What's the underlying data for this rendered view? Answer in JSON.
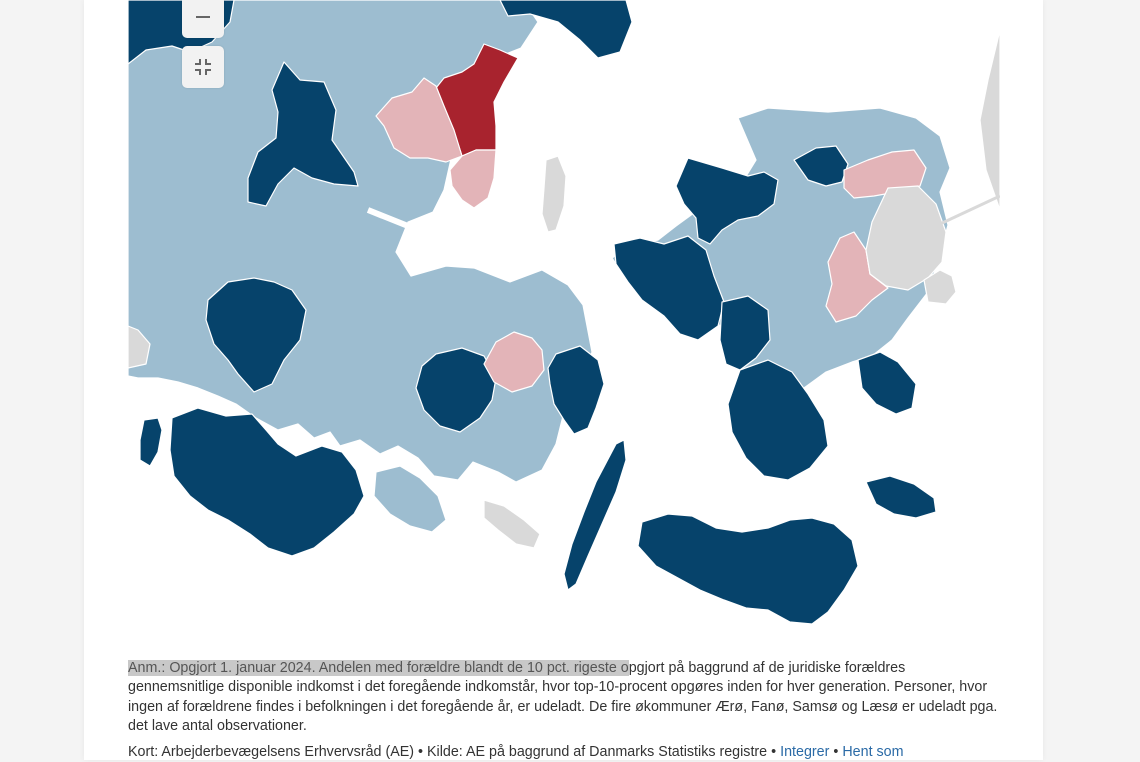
{
  "colors": {
    "dark_blue": "#06436b",
    "light_blue": "#9dbdd0",
    "light_pink": "#e3b4b8",
    "dark_red": "#a8232e",
    "no_data_grey": "#d9d9d9",
    "water": "#ffffff"
  },
  "controls": {
    "zoom_out_icon": "minus-icon",
    "fullscreen_icon": "exit-fullscreen-icon"
  },
  "note": {
    "highlighted": "Anm.: Opgjort 1. januar 2024. Andelen med forældre blandt de 10 pct. rigeste o",
    "rest": "pgjort på baggrund af de juridiske forældres gennemsnitlige disponible indkomst i det foregående indkomstår, hvor top-10-procent opgøres inden for hver generation. Personer, hvor ingen af forældrene findes i befolkningen i det foregående år, er udeladt. De fire økommuner Ærø, Fanø, Samsø og Læsø er udeladt pga. det lave antal observationer."
  },
  "source": {
    "text": "Kort: Arbejderbevægelsens Erhvervsråd (AE) • Kilde: AE på baggrund af Danmarks Statistiks registre •",
    "embed_link": "Integrer",
    "separator": "•",
    "download_link": "Hent som"
  }
}
